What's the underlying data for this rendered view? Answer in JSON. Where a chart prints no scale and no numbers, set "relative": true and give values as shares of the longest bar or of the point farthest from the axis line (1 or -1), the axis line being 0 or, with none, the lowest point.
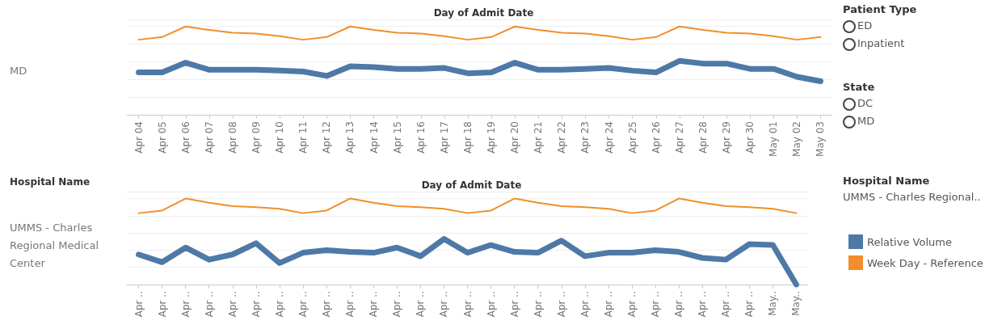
{
  "chart_data": [
    {
      "type": "line",
      "title": "Day of Admit Date",
      "ylabel": "MD",
      "relative": true,
      "grid": "y",
      "marker": "none",
      "line_style": "solid",
      "categories": [
        "Apr 04",
        "Apr 05",
        "Apr 06",
        "Apr 07",
        "Apr 08",
        "Apr 09",
        "Apr 10",
        "Apr 11",
        "Apr 12",
        "Apr 13",
        "Apr 14",
        "Apr 15",
        "Apr 16",
        "Apr 17",
        "Apr 18",
        "Apr 19",
        "Apr 20",
        "Apr 21",
        "Apr 22",
        "Apr 23",
        "Apr 24",
        "Apr 25",
        "Apr 26",
        "Apr 27",
        "Apr 28",
        "Apr 29",
        "Apr 30",
        "May 01",
        "May 02",
        "May 03"
      ],
      "series": [
        {
          "color": "#4e79a7",
          "values": [
            0.48,
            0.48,
            0.59,
            0.51,
            0.51,
            0.51,
            0.5,
            0.49,
            0.44,
            0.55,
            0.54,
            0.52,
            0.52,
            0.53,
            0.47,
            0.48,
            0.59,
            0.51,
            0.51,
            0.52,
            0.53,
            0.5,
            0.48,
            0.61,
            0.58,
            0.58,
            0.52,
            0.52,
            0.43,
            0.38
          ]
        },
        {
          "color": "#f28e2b",
          "values": [
            0.85,
            0.88,
            1,
            0.96,
            0.93,
            0.92,
            0.89,
            0.85,
            0.88,
            1,
            0.96,
            0.93,
            0.92,
            0.89,
            0.85,
            0.88,
            1,
            0.96,
            0.93,
            0.92,
            0.89,
            0.85,
            0.88,
            1,
            0.96,
            0.93,
            0.92,
            0.89,
            0.85,
            0.88
          ]
        }
      ]
    },
    {
      "type": "line",
      "title": "Day of Admit Date",
      "ylabel": "UMMS - Charles Regional Medical Center",
      "annotations": [
        "Hospital Name"
      ],
      "relative": true,
      "grid": "y",
      "marker": "none",
      "line_style": "solid",
      "legend": "right",
      "categories": [
        "Apr ..",
        "Apr ..",
        "Apr ..",
        "Apr ..",
        "Apr ..",
        "Apr ..",
        "Apr ..",
        "Apr ..",
        "Apr ..",
        "Apr ..",
        "Apr ..",
        "Apr ..",
        "Apr ..",
        "Apr ..",
        "Apr ..",
        "Apr ..",
        "Apr ..",
        "Apr ..",
        "Apr ..",
        "Apr ..",
        "Apr ..",
        "Apr ..",
        "Apr ..",
        "Apr ..",
        "Apr ..",
        "Apr ..",
        "Apr ..",
        "May..",
        "May.."
      ],
      "series": [
        {
          "name": "Relative Volume",
          "color": "#4e79a7",
          "values": [
            0.35,
            0.26,
            0.43,
            0.29,
            0.35,
            0.48,
            0.25,
            0.37,
            0.4,
            0.38,
            0.37,
            0.43,
            0.33,
            0.53,
            0.37,
            0.46,
            0.38,
            0.37,
            0.51,
            0.33,
            0.37,
            0.37,
            0.4,
            0.38,
            0.31,
            0.29,
            0.47,
            0.46,
            0
          ]
        },
        {
          "name": "Week Day - Reference",
          "color": "#f28e2b",
          "values": [
            0.83,
            0.86,
            1,
            0.95,
            0.91,
            0.9,
            0.88,
            0.83,
            0.86,
            1,
            0.95,
            0.91,
            0.9,
            0.88,
            0.83,
            0.86,
            1,
            0.95,
            0.91,
            0.9,
            0.88,
            0.83,
            0.86,
            1,
            0.95,
            0.91,
            0.9,
            0.88,
            0.83
          ]
        }
      ]
    },
    {
      "type": "other",
      "annotations": [
        "Patient Type",
        "ED",
        "Inpatient",
        "State",
        "DC",
        "MD",
        "Hospital Name",
        "UMMS - Charles Regional.."
      ]
    }
  ]
}
